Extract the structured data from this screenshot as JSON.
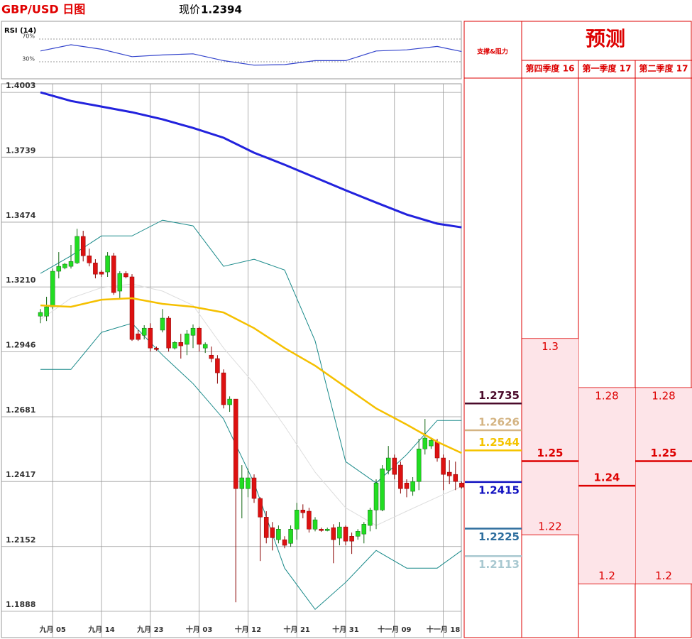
{
  "chart_data": [
    {
      "type": "candlestick",
      "title": "GBP/USD 日图",
      "price_label": "现价",
      "current_price": 1.2394,
      "categories": [
        null,
        null,
        "九月 05",
        null,
        null,
        null,
        null,
        null,
        null,
        null,
        "九月 14",
        null,
        null,
        null,
        null,
        null,
        null,
        null,
        "九月 23",
        null,
        null,
        null,
        null,
        null,
        null,
        null,
        "十月 03",
        null,
        null,
        null,
        null,
        null,
        null,
        null,
        "十月 12",
        null,
        null,
        null,
        null,
        null,
        null,
        null,
        "十月 21",
        null,
        null,
        null,
        null,
        null,
        null,
        null,
        "十月 31",
        null,
        null,
        null,
        null,
        null,
        null,
        null,
        "十一月 09",
        null,
        null,
        null,
        null,
        null,
        null,
        null,
        "十一月 18",
        null,
        null,
        null
      ],
      "open": [
        1.3091,
        1.3091,
        1.3129,
        1.3274,
        1.3288,
        1.3294,
        1.3308,
        1.3416,
        1.3337,
        1.3308,
        1.3271,
        1.3271,
        1.3337,
        1.3193,
        1.3265,
        1.3251,
        1.3019,
        1.3013,
        1.3042,
        1.2961,
        1.3034,
        1.3083,
        1.2961,
        1.2984,
        1.2976,
        1.3013,
        1.3042,
        1.2961,
        1.2932,
        1.2918,
        1.286,
        1.273,
        1.2753,
        1.2388,
        1.2388,
        1.2432,
        1.2348,
        1.2272,
        1.2229,
        1.218,
        1.218,
        1.2165,
        1.2223,
        1.2301,
        1.2296,
        1.2223,
        1.2223,
        1.2217,
        1.2229,
        1.2186,
        1.2232,
        1.2194,
        1.2194,
        1.2203,
        1.2238,
        1.2301,
        1.2301,
        1.2463,
        1.2513,
        1.2484,
        1.2411,
        1.2377,
        1.2417,
        1.255,
        1.2562,
        1.2579,
        1.2513,
        1.2455,
        1.2446,
        1.2411
      ],
      "high": [
        1.312,
        1.317,
        1.3285,
        1.3352,
        1.3308,
        1.3381,
        1.3447,
        1.3439,
        1.3366,
        1.3323,
        1.3279,
        1.3352,
        1.3349,
        1.3274,
        1.3274,
        1.3262,
        1.3034,
        1.3054,
        1.3062,
        1.2967,
        1.312,
        1.3091,
        1.299,
        1.3019,
        1.3034,
        1.3057,
        1.3048,
        1.2984,
        1.2967,
        1.2932,
        1.2874,
        1.2764,
        1.2753,
        1.2484,
        1.2469,
        1.2446,
        1.2353,
        1.2296,
        1.2252,
        1.2238,
        1.2194,
        1.2238,
        1.233,
        1.2324,
        1.231,
        1.2272,
        1.2229,
        1.2229,
        1.2243,
        1.2252,
        1.2238,
        1.2209,
        1.2223,
        1.2252,
        1.231,
        1.2426,
        1.2484,
        1.2562,
        1.2527,
        1.2498,
        1.2426,
        1.2435,
        1.2591,
        1.2672,
        1.2597,
        1.2591,
        1.2527,
        1.2504,
        1.2498,
        1.2417
      ],
      "low": [
        1.3062,
        1.3071,
        1.312,
        1.3245,
        1.3282,
        1.3285,
        1.3303,
        1.3314,
        1.3294,
        1.3245,
        1.3251,
        1.3251,
        1.3178,
        1.3164,
        1.3245,
        1.299,
        1.299,
        1.2996,
        1.2947,
        1.295,
        1.3025,
        1.2947,
        1.2955,
        1.2918,
        1.2932,
        1.2961,
        1.2947,
        1.2941,
        1.2903,
        1.2816,
        1.2715,
        1.2701,
        1.1925,
        1.2267,
        1.2353,
        1.233,
        1.2093,
        1.2165,
        1.2136,
        1.2165,
        1.2145,
        1.2151,
        1.218,
        1.2267,
        1.2209,
        1.2214,
        1.2212,
        1.2214,
        1.2084,
        1.2157,
        1.2157,
        1.2122,
        1.218,
        1.2165,
        1.2214,
        1.2223,
        1.2296,
        1.2446,
        1.2426,
        1.2368,
        1.2353,
        1.2359,
        1.2382,
        1.2527,
        1.255,
        1.2498,
        1.2382,
        1.2406,
        1.2382,
        1.2388
      ],
      "close": [
        1.3106,
        1.3129,
        1.3274,
        1.3294,
        1.3303,
        1.3314,
        1.3416,
        1.3337,
        1.3308,
        1.3262,
        1.3262,
        1.3337,
        1.3187,
        1.3265,
        1.3251,
        1.2996,
        1.2996,
        1.3042,
        1.2961,
        1.2955,
        1.3083,
        1.2961,
        1.2984,
        1.297,
        1.3019,
        1.3042,
        1.2976,
        1.2976,
        1.2918,
        1.286,
        1.273,
        1.2753,
        1.2388,
        1.2432,
        1.2432,
        1.2348,
        1.2272,
        1.2188,
        1.2188,
        1.2223,
        1.2157,
        1.2223,
        1.2301,
        1.229,
        1.2223,
        1.2261,
        1.2217,
        1.2223,
        1.218,
        1.2232,
        1.2174,
        1.2174,
        1.2214,
        1.2243,
        1.2301,
        1.2411,
        1.2469,
        1.2513,
        1.2446,
        1.2388,
        1.2388,
        1.2417,
        1.255,
        1.2594,
        1.2585,
        1.2513,
        1.2446,
        1.244,
        1.2417,
        1.2394
      ],
      "up_color": "#22dd22",
      "down_color": "#dd1111",
      "overlay_x": [
        0,
        5,
        10,
        15,
        20,
        25,
        30,
        35,
        40,
        45,
        50,
        55,
        60,
        65,
        69
      ],
      "overlays": [
        {
          "color": "#dddddd",
          "width": 1,
          "values": [
            1.3077,
            1.3164,
            1.3207,
            1.3222,
            1.3193,
            1.3135,
            1.2961,
            1.2816,
            1.2643,
            1.2455,
            1.231,
            1.2238,
            1.2296,
            1.2353,
            1.2397
          ]
        },
        {
          "color": "#1a8a8a",
          "width": 1,
          "values": [
            1.3265,
            1.3337,
            1.3418,
            1.3418,
            1.3482,
            1.3459,
            1.3294,
            1.3323,
            1.3279,
            1.299,
            1.2498,
            1.2411,
            1.2527,
            1.2666,
            1.2666
          ]
        },
        {
          "color": "#1a8a8a",
          "width": 1,
          "values": [
            1.2874,
            1.2874,
            1.3025,
            1.3062,
            1.2932,
            1.2816,
            1.2672,
            1.2411,
            1.2064,
            1.1896,
            1.2006,
            1.2136,
            1.2064,
            1.2064,
            1.2136
          ]
        },
        {
          "color": "#f5c000",
          "width": 2.5,
          "values": [
            1.3135,
            1.3129,
            1.3158,
            1.3164,
            1.3141,
            1.3129,
            1.3106,
            1.3042,
            1.2961,
            1.2889,
            1.2802,
            1.2715,
            1.2649,
            1.2579,
            1.2533
          ]
        },
        {
          "color": "#2222dd",
          "width": 3,
          "values": [
            1.4003,
            1.3968,
            1.3945,
            1.3922,
            1.3893,
            1.3858,
            1.3818,
            1.3757,
            1.3708,
            1.3656,
            1.3604,
            1.3554,
            1.3505,
            1.3468,
            1.3453
          ]
        }
      ],
      "ylim": [
        1.1781,
        1.4038
      ],
      "yticks": [
        1.4003,
        1.3739,
        1.3474,
        {
          "value": 1.321,
          "label": "1.3210"
        },
        1.2946,
        1.2681,
        1.2417,
        1.2152,
        1.1888
      ],
      "grid": true
    },
    {
      "type": "line",
      "title": "RSI (14)",
      "color": "#3344cc",
      "x": [
        0,
        5,
        10,
        15,
        20,
        25,
        30,
        35,
        40,
        45,
        50,
        55,
        60,
        65,
        69
      ],
      "values": [
        49,
        60,
        52,
        39,
        42,
        44,
        32,
        24,
        25,
        32,
        32,
        49,
        51,
        57,
        48
      ],
      "ylim": [
        0,
        100
      ],
      "yticks": [
        {
          "value": 70,
          "label": "70%"
        },
        {
          "value": 30,
          "label": "30%"
        }
      ]
    },
    {
      "type": "forecast",
      "title": "预测",
      "levels_title": "支撑&阻力",
      "levels": [
        {
          "value": 1.2735,
          "color": "#4a0a2a"
        },
        {
          "value": 1.2626,
          "color": "#d4b483"
        },
        {
          "value": 1.2544,
          "color": "#f5c400"
        },
        {
          "value": 1.2415,
          "color": "#1010c0"
        },
        {
          "value": 1.2225,
          "color": "#2e6e9e"
        },
        {
          "value": 1.2113,
          "color": "#a8c8d0"
        }
      ],
      "columns": [
        {
          "name": "第四季度 16",
          "high": 1.3,
          "mid": 1.25,
          "low": 1.22
        },
        {
          "name": "第一季度 17",
          "high": 1.28,
          "mid": 1.24,
          "low": 1.2
        },
        {
          "name": "第二季度 17",
          "high": 1.28,
          "mid": 1.25,
          "low": 1.2
        }
      ],
      "fill": "#fde4e8",
      "line_color": "#dd0000"
    }
  ]
}
